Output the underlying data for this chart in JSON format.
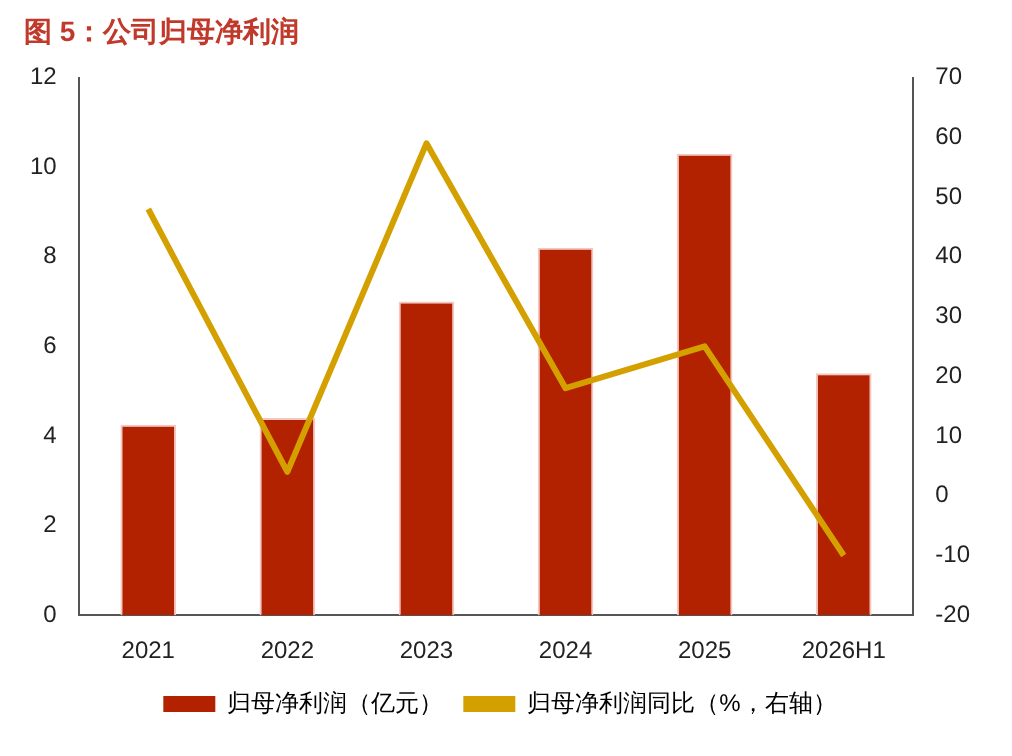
{
  "chart_data": {
    "type": "bar",
    "title": "图 5：公司归母净利润",
    "categories": [
      "2021",
      "2022",
      "2023",
      "2024",
      "2025",
      "2026H1"
    ],
    "series": [
      {
        "name": "归母净利润（亿元）",
        "color": "#b22200",
        "values": [
          4.25,
          4.4,
          7.0,
          8.2,
          10.3,
          5.4
        ]
      },
      {
        "name": "归母净利润同比（%，右轴）",
        "type": "line",
        "axis": "y2",
        "color": "#d4a000",
        "values": [
          48,
          4,
          59,
          18,
          25,
          -10
        ]
      }
    ],
    "ylim": [
      0,
      12
    ],
    "yticks": [
      0,
      2,
      4,
      6,
      8,
      10,
      12
    ],
    "y2lim": [
      -20,
      70
    ],
    "y2ticks": [
      -20,
      -10,
      0,
      10,
      20,
      30,
      40,
      50,
      60,
      70
    ],
    "grid": false,
    "legend": "bottom",
    "marker": "none"
  }
}
